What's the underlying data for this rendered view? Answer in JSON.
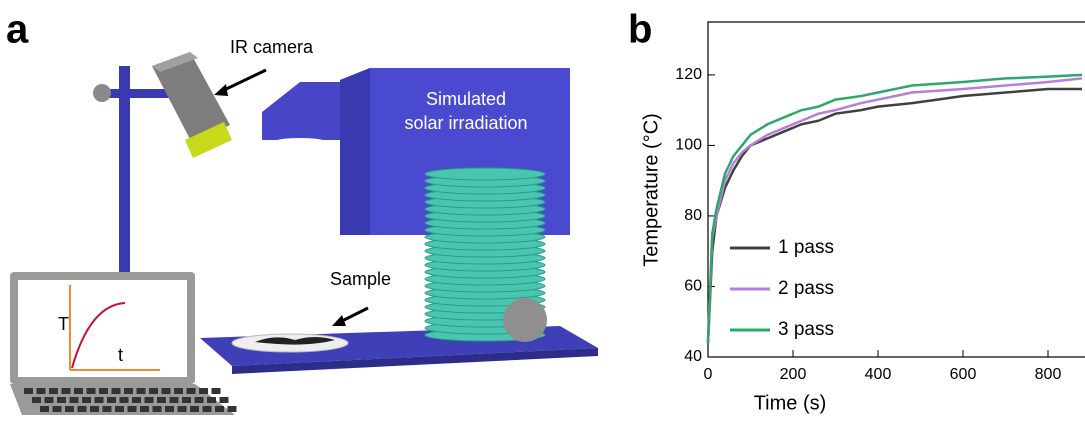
{
  "panel_labels": [
    "a",
    "b"
  ],
  "diagram": {
    "camera_label": "IR camera",
    "source_label": [
      "Simulated",
      "solar irradiation"
    ],
    "sample_label": "Sample",
    "screen_y_label": "T",
    "screen_x_label": "t"
  },
  "chart_data": {
    "type": "line",
    "xlabel": "Time (s)",
    "ylabel": "Temperature (°C)",
    "x": [
      0,
      10,
      20,
      40,
      60,
      80,
      100,
      140,
      180,
      220,
      260,
      300,
      360,
      400,
      480,
      540,
      600,
      700,
      800,
      880
    ],
    "series": [
      {
        "name": "1 pass",
        "color": "#404040",
        "values": [
          44,
          70,
          80,
          88,
          93,
          97,
          100,
          102,
          104,
          106,
          107,
          109,
          110,
          111,
          112,
          113,
          114,
          115,
          116,
          116
        ]
      },
      {
        "name": "2 pass",
        "color": "#b57fdb",
        "values": [
          44,
          74,
          80,
          90,
          95,
          98,
          100,
          103,
          105,
          107,
          109,
          110,
          112,
          113,
          115,
          115.5,
          116,
          117,
          118,
          119
        ]
      },
      {
        "name": "3 pass",
        "color": "#2ea86a",
        "values": [
          44,
          75,
          82,
          92,
          97,
          100,
          103,
          106,
          108,
          110,
          111,
          113,
          114,
          115,
          117,
          117.5,
          118,
          119,
          119.5,
          120
        ]
      }
    ],
    "xlim": [
      0,
      900
    ],
    "ylim": [
      40,
      135
    ],
    "xticks": [
      0,
      200,
      400,
      600,
      800
    ],
    "yticks": [
      40,
      60,
      80,
      100,
      120
    ]
  }
}
